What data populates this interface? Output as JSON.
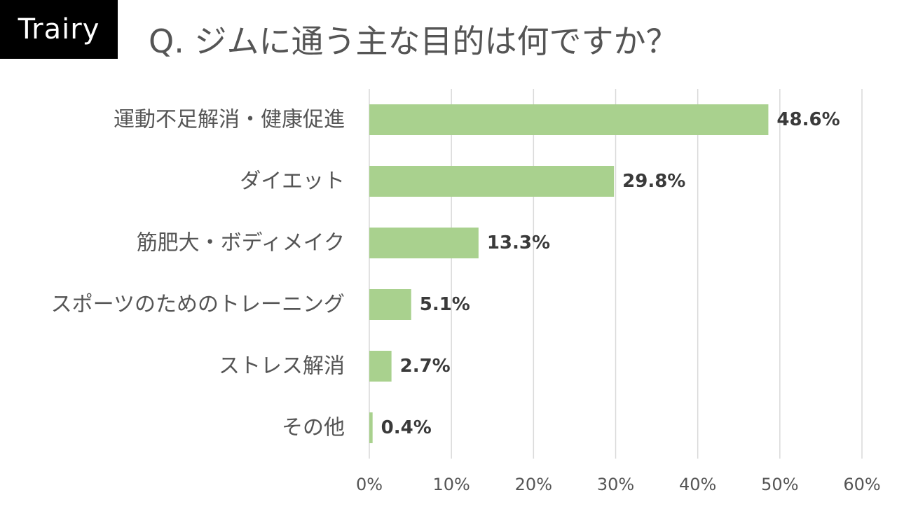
{
  "brand": "Trairy",
  "title": "Q. ジムに通う主な目的は何ですか？",
  "chart_data": {
    "type": "bar",
    "orientation": "horizontal",
    "title": "Q. ジムに通う主な目的は何ですか？",
    "categories": [
      "運動不足解消・健康促進",
      "ダイエット",
      "筋肥大・ボディメイク",
      "スポーツのためのトレーニング",
      "ストレス解消",
      "その他"
    ],
    "values": [
      48.6,
      29.8,
      13.3,
      5.1,
      2.7,
      0.4
    ],
    "value_labels": [
      "48.6%",
      "29.8%",
      "13.3%",
      "5.1%",
      "2.7%",
      "0.4%"
    ],
    "xlim": [
      0,
      60
    ],
    "x_ticks": [
      0,
      10,
      20,
      30,
      40,
      50,
      60
    ],
    "x_tick_labels": [
      "0%",
      "10%",
      "20%",
      "30%",
      "40%",
      "50%",
      "60%"
    ],
    "grid": "vertical",
    "colors": {
      "bar": "#a9d18e",
      "grid": "#d9d9d9"
    }
  }
}
